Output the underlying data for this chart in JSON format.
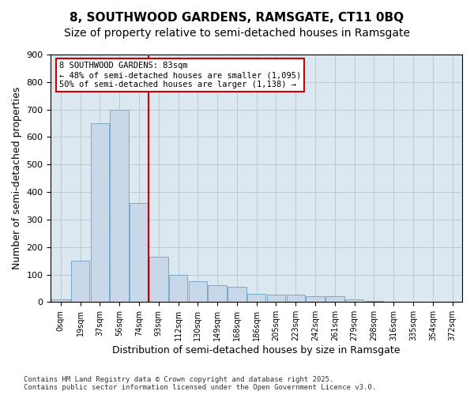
{
  "title1": "8, SOUTHWOOD GARDENS, RAMSGATE, CT11 0BQ",
  "title2": "Size of property relative to semi-detached houses in Ramsgate",
  "xlabel": "Distribution of semi-detached houses by size in Ramsgate",
  "ylabel": "Number of semi-detached properties",
  "bin_labels": [
    "0sqm",
    "19sqm",
    "37sqm",
    "56sqm",
    "74sqm",
    "93sqm",
    "112sqm",
    "130sqm",
    "149sqm",
    "168sqm",
    "186sqm",
    "205sqm",
    "223sqm",
    "242sqm",
    "261sqm",
    "279sqm",
    "298sqm",
    "316sqm",
    "335sqm",
    "354sqm",
    "372sqm"
  ],
  "bar_values": [
    10,
    150,
    650,
    700,
    360,
    165,
    100,
    75,
    60,
    55,
    30,
    28,
    28,
    20,
    20,
    10,
    5,
    2,
    1,
    0,
    0
  ],
  "bar_color": "#c8d8e8",
  "bar_edge_color": "#7aaac8",
  "vline_pos": 4.5,
  "vline_color": "#cc0000",
  "annotation_title": "8 SOUTHWOOD GARDENS: 83sqm",
  "annotation_line1": "← 48% of semi-detached houses are smaller (1,095)",
  "annotation_line2": "50% of semi-detached houses are larger (1,138) →",
  "annotation_box_color": "#cc0000",
  "footnote": "Contains HM Land Registry data © Crown copyright and database right 2025.\nContains public sector information licensed under the Open Government Licence v3.0.",
  "ylim": [
    0,
    900
  ],
  "yticks": [
    0,
    100,
    200,
    300,
    400,
    500,
    600,
    700,
    800,
    900
  ],
  "grid_color": "#c0c8d8",
  "background_color": "#dce8f0",
  "title1_fontsize": 11,
  "title2_fontsize": 10,
  "xlabel_fontsize": 9,
  "ylabel_fontsize": 9
}
